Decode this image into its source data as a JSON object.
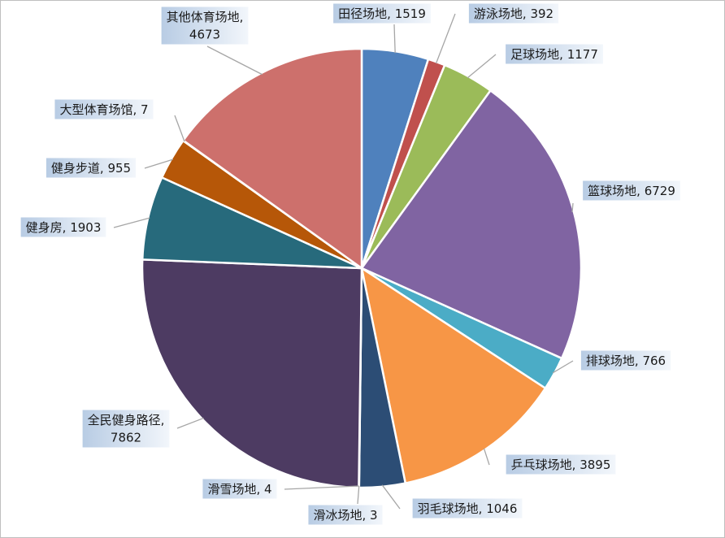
{
  "chart_data": {
    "type": "pie",
    "categories": [
      "田径场地",
      "游泳场地",
      "足球场地",
      "篮球场地",
      "排球场地",
      "乒乓球场地",
      "羽毛球场地",
      "滑冰场地",
      "滑雪场地",
      "全民健身路径",
      "健身房",
      "健身步道",
      "大型体育场馆",
      "其他体育场地"
    ],
    "values": [
      1519,
      392,
      1177,
      6729,
      766,
      3895,
      1046,
      3,
      4,
      7862,
      1903,
      955,
      7,
      4673
    ],
    "colors": [
      "#4f81bd",
      "#c0504d",
      "#9bbb59",
      "#8064a2",
      "#4bacc6",
      "#f79646",
      "#2c4d75",
      "#772c2a",
      "#5f7530",
      "#4d3b62",
      "#276a7c",
      "#b65708",
      "#729aca",
      "#cd706c"
    ]
  }
}
